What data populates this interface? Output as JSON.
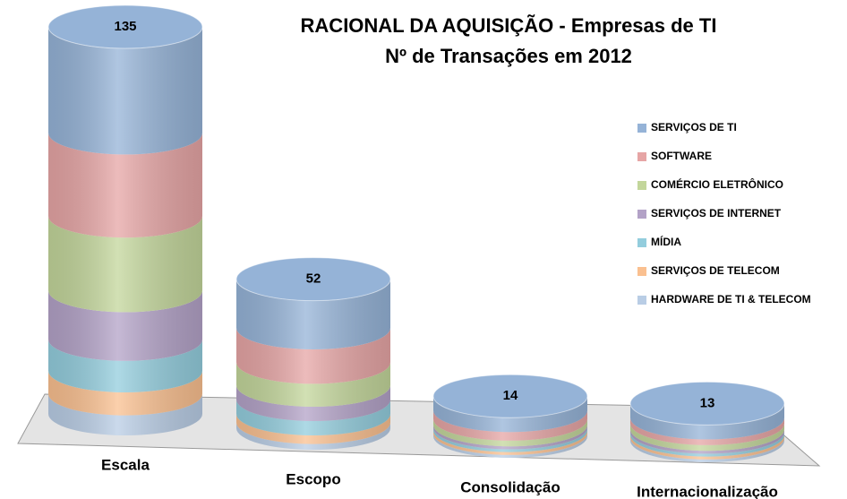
{
  "chart_data": {
    "type": "stacked-cylinder",
    "title": "RACIONAL DA AQUISIÇÃO - Empresas de TI",
    "subtitle": "Nº de Transações em 2012",
    "categories": [
      "Escala",
      "Escopo",
      "Consolidação",
      "Internacionalização"
    ],
    "totals": [
      135,
      52,
      14,
      13
    ],
    "series": [
      {
        "name": "SERVIÇOS DE TI",
        "color": "#95b3d7",
        "values": [
          37,
          17,
          5,
          5
        ]
      },
      {
        "name": "SOFTWARE",
        "color": "#e6a5a5",
        "values": [
          29,
          12,
          3,
          2
        ]
      },
      {
        "name": "COMÉRCIO ELETRÔNICO",
        "color": "#c3d69b",
        "values": [
          26,
          8,
          2,
          2
        ]
      },
      {
        "name": "SERVIÇOS DE INTERNET",
        "color": "#b3a2c7",
        "values": [
          17,
          5,
          1,
          1
        ]
      },
      {
        "name": "MÍDIA",
        "color": "#93cddd",
        "values": [
          11,
          5,
          1,
          1
        ]
      },
      {
        "name": "SERVIÇOS DE TELECOM",
        "color": "#fac090",
        "values": [
          8,
          3,
          1,
          1
        ]
      },
      {
        "name": "HARDWARE  DE TI & TELECOM",
        "color": "#b9cde5",
        "values": [
          7,
          2,
          1,
          1
        ]
      }
    ]
  }
}
